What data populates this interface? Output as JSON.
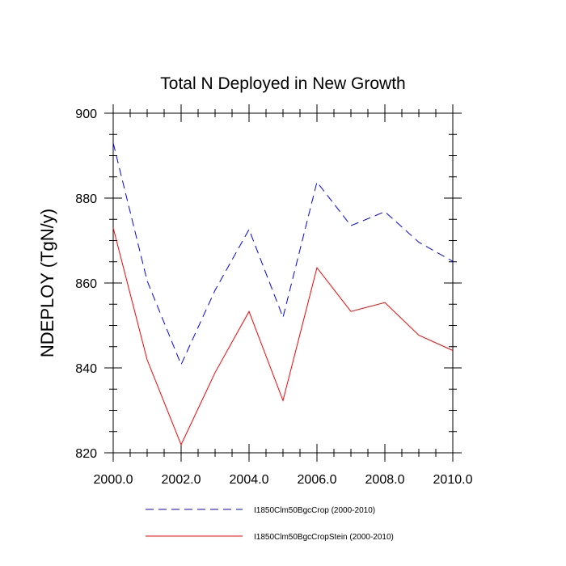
{
  "chart_data": {
    "type": "line",
    "title": "Total N Deployed in New Growth",
    "xlabel": "",
    "ylabel": "NDEPLOY  (TgN/y)",
    "xlim": [
      2000,
      2010
    ],
    "ylim": [
      820,
      900
    ],
    "xticks": [
      2000,
      2002,
      2004,
      2006,
      2008,
      2010
    ],
    "xtick_labels": [
      "2000.0",
      "2002.0",
      "2004.0",
      "2006.0",
      "2008.0",
      "2010.0"
    ],
    "yticks": [
      820,
      840,
      860,
      880,
      900
    ],
    "ytick_labels": [
      "820",
      "840",
      "860",
      "880",
      "900"
    ],
    "grid": false,
    "legend_position": "bottom",
    "x": [
      2000,
      2001,
      2002,
      2003,
      2004,
      2005,
      2006,
      2007,
      2008,
      2009,
      2010
    ],
    "series": [
      {
        "name": "I1850Clm50BgcCrop (2000-2010)",
        "color": "#0000ff",
        "dash": "dashed",
        "values": [
          893.0,
          860.5,
          840.8,
          858.3,
          872.6,
          851.9,
          883.8,
          873.5,
          876.8,
          869.6,
          865.1
        ]
      },
      {
        "name": "I1850Clm50BgcCropStein (2000-2010)",
        "color": "#ff0000",
        "dash": "solid",
        "values": [
          873.0,
          841.9,
          821.9,
          838.9,
          853.3,
          832.3,
          863.6,
          853.3,
          855.4,
          847.7,
          844.1
        ]
      }
    ]
  }
}
